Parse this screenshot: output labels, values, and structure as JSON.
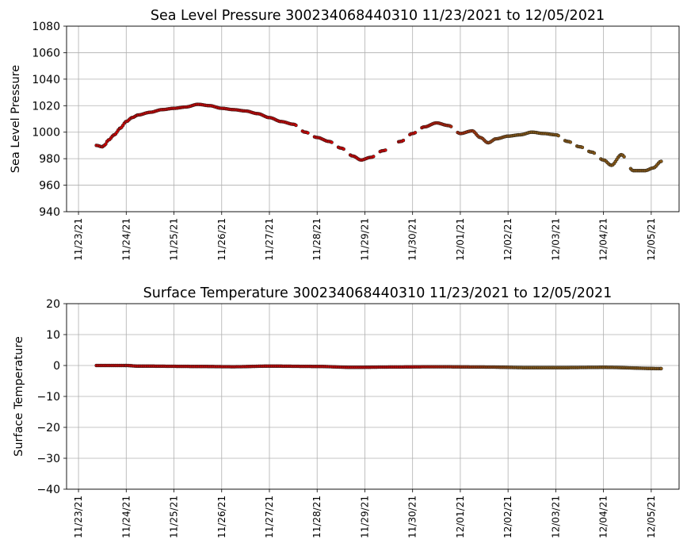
{
  "chart_data": [
    {
      "type": "scatter",
      "title": "Sea Level Pressure 300234068440310  11/23/2021 to 12/05/2021",
      "ylabel": "Sea Level Pressure",
      "xlabel": "",
      "ylim": [
        940,
        1080
      ],
      "yticks": [
        "940",
        "960",
        "980",
        "1000",
        "1020",
        "1040",
        "1060",
        "1080"
      ],
      "xlim": [
        "2021-11-22T18:00",
        "2021-12-05T14:00"
      ],
      "xticks": [
        "11/23/21",
        "11/24/21",
        "11/25/21",
        "11/26/21",
        "11/27/21",
        "11/28/21",
        "11/29/21",
        "11/30/21",
        "12/01/21",
        "12/02/21",
        "12/03/21",
        "12/04/21",
        "12/05/21"
      ],
      "grid": true,
      "marker_fill_start": "#d40000",
      "marker_fill_end": "#8b5a14",
      "marker_edge": "#222222",
      "profile": [
        [
          "2021-11-23T09:00",
          990
        ],
        [
          "2021-11-23T12:00",
          989
        ],
        [
          "2021-11-23T13:00",
          990
        ],
        [
          "2021-11-23T15:00",
          994
        ],
        [
          "2021-11-23T18:00",
          998
        ],
        [
          "2021-11-23T21:00",
          1003
        ],
        [
          "2021-11-24T00:00",
          1008
        ],
        [
          "2021-11-24T03:00",
          1011
        ],
        [
          "2021-11-24T06:00",
          1013
        ],
        [
          "2021-11-24T12:00",
          1015
        ],
        [
          "2021-11-24T18:00",
          1017
        ],
        [
          "2021-11-25T00:00",
          1018
        ],
        [
          "2021-11-25T06:00",
          1019
        ],
        [
          "2021-11-25T12:00",
          1021
        ],
        [
          "2021-11-25T18:00",
          1020
        ],
        [
          "2021-11-26T00:00",
          1018
        ],
        [
          "2021-11-26T06:00",
          1017
        ],
        [
          "2021-11-26T12:00",
          1016
        ],
        [
          "2021-11-26T18:00",
          1014
        ],
        [
          "2021-11-27T00:00",
          1011
        ],
        [
          "2021-11-27T06:00",
          1008
        ],
        [
          "2021-11-27T12:00",
          1006
        ],
        [
          "2021-11-27T18:00",
          1000
        ],
        [
          "2021-11-28T00:00",
          996
        ],
        [
          "2021-11-28T06:00",
          993
        ],
        [
          "2021-11-28T12:00",
          988
        ],
        [
          "2021-11-28T18:00",
          982
        ],
        [
          "2021-11-28T22:00",
          979
        ],
        [
          "2021-11-29T03:00",
          981
        ],
        [
          "2021-11-29T09:00",
          986
        ],
        [
          "2021-11-29T18:00",
          993
        ],
        [
          "2021-11-30T00:00",
          999
        ],
        [
          "2021-11-30T06:00",
          1004
        ],
        [
          "2021-11-30T12:00",
          1007
        ],
        [
          "2021-11-30T18:00",
          1005
        ],
        [
          "2021-12-01T00:00",
          999
        ],
        [
          "2021-12-01T06:00",
          1001
        ],
        [
          "2021-12-01T10:00",
          996
        ],
        [
          "2021-12-01T14:00",
          992
        ],
        [
          "2021-12-01T18:00",
          995
        ],
        [
          "2021-12-02T00:00",
          997
        ],
        [
          "2021-12-02T06:00",
          998
        ],
        [
          "2021-12-02T12:00",
          1000
        ],
        [
          "2021-12-02T18:00",
          999
        ],
        [
          "2021-12-03T00:00",
          998
        ],
        [
          "2021-12-03T06:00",
          993
        ],
        [
          "2021-12-03T12:00",
          989
        ],
        [
          "2021-12-03T18:00",
          985
        ],
        [
          "2021-12-04T00:00",
          979
        ],
        [
          "2021-12-04T04:00",
          975
        ],
        [
          "2021-12-04T09:00",
          983
        ],
        [
          "2021-12-04T15:00",
          971
        ],
        [
          "2021-12-04T21:00",
          971
        ],
        [
          "2021-12-05T01:00",
          973
        ],
        [
          "2021-12-05T05:00",
          978
        ]
      ]
    },
    {
      "type": "scatter",
      "title": "Surface Temperature 300234068440310  11/23/2021 to 12/05/2021",
      "ylabel": "Surface Temperature",
      "xlabel": "",
      "ylim": [
        -40,
        20
      ],
      "yticks": [
        "−40",
        "−30",
        "−20",
        "−10",
        "0",
        "10",
        "20"
      ],
      "xlim": [
        "2021-11-22T18:00",
        "2021-12-05T14:00"
      ],
      "xticks": [
        "11/23/21",
        "11/24/21",
        "11/25/21",
        "11/26/21",
        "11/27/21",
        "11/28/21",
        "11/29/21",
        "11/30/21",
        "12/01/21",
        "12/02/21",
        "12/03/21",
        "12/04/21",
        "12/05/21"
      ],
      "grid": true,
      "marker_fill_start": "#d40000",
      "marker_fill_end": "#8b5a14",
      "marker_edge": "#222222",
      "profile": [
        [
          "2021-11-23T09:00",
          0.0
        ],
        [
          "2021-11-24T00:00",
          0.0
        ],
        [
          "2021-11-24T06:00",
          -0.2
        ],
        [
          "2021-11-25T12:00",
          -0.3
        ],
        [
          "2021-11-26T06:00",
          -0.4
        ],
        [
          "2021-11-27T00:00",
          -0.2
        ],
        [
          "2021-11-28T00:00",
          -0.3
        ],
        [
          "2021-11-28T18:00",
          -0.6
        ],
        [
          "2021-11-29T12:00",
          -0.5
        ],
        [
          "2021-11-30T12:00",
          -0.4
        ],
        [
          "2021-12-01T12:00",
          -0.5
        ],
        [
          "2021-12-02T12:00",
          -0.7
        ],
        [
          "2021-12-03T00:00",
          -0.7
        ],
        [
          "2021-12-04T00:00",
          -0.6
        ],
        [
          "2021-12-05T05:00",
          -1.0
        ]
      ]
    }
  ]
}
